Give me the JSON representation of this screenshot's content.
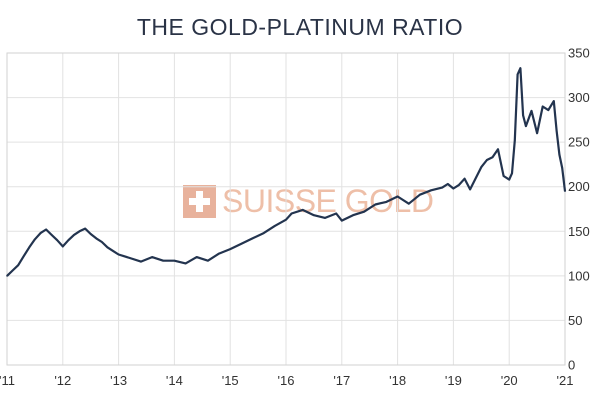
{
  "chart_data": {
    "type": "line",
    "title": "THE GOLD-PLATINUM RATIO",
    "watermark": "SUISSE GOLD",
    "xlabel": "",
    "ylabel": "",
    "x_ticks": [
      "'11",
      "'12",
      "'13",
      "'14",
      "'15",
      "'16",
      "'17",
      "'18",
      "'19",
      "'20",
      "'21"
    ],
    "y_ticks": [
      0,
      50,
      100,
      150,
      200,
      250,
      300,
      350
    ],
    "ylim": [
      0,
      350
    ],
    "xlim": [
      2011.0,
      2021.0
    ],
    "grid": true,
    "y_axis_side": "right",
    "series_color": "#23344f",
    "series": [
      {
        "x": [
          2011.0,
          2011.1,
          2011.2,
          2011.3,
          2011.4,
          2011.5,
          2011.6,
          2011.7,
          2011.8,
          2011.9,
          2012.0,
          2012.1,
          2012.2,
          2012.3,
          2012.4,
          2012.5,
          2012.6,
          2012.7,
          2012.8,
          2012.9,
          2013.0,
          2013.2,
          2013.4,
          2013.6,
          2013.8,
          2014.0,
          2014.2,
          2014.4,
          2014.6,
          2014.8,
          2015.0,
          2015.2,
          2015.4,
          2015.6,
          2015.8,
          2016.0,
          2016.1,
          2016.3,
          2016.5,
          2016.7,
          2016.9,
          2017.0,
          2017.2,
          2017.4,
          2017.6,
          2017.8,
          2018.0,
          2018.2,
          2018.4,
          2018.6,
          2018.8,
          2018.9,
          2019.0,
          2019.1,
          2019.2,
          2019.3,
          2019.5,
          2019.6,
          2019.7,
          2019.8,
          2019.9,
          2020.0,
          2020.05,
          2020.1,
          2020.15,
          2020.2,
          2020.25,
          2020.3,
          2020.4,
          2020.5,
          2020.6,
          2020.7,
          2020.8,
          2020.85,
          2020.9,
          2020.95,
          2021.0
        ],
        "values": [
          100,
          106,
          112,
          122,
          132,
          141,
          148,
          152,
          146,
          140,
          133,
          140,
          146,
          150,
          153,
          147,
          142,
          138,
          132,
          128,
          124,
          120,
          116,
          121,
          117,
          117,
          114,
          121,
          117,
          125,
          130,
          136,
          142,
          148,
          156,
          163,
          170,
          174,
          168,
          165,
          170,
          162,
          168,
          172,
          180,
          183,
          189,
          181,
          191,
          196,
          199,
          203,
          198,
          202,
          209,
          197,
          222,
          230,
          233,
          242,
          212,
          208,
          215,
          252,
          326,
          333,
          280,
          268,
          285,
          260,
          290,
          286,
          296,
          263,
          236,
          221,
          195
        ]
      }
    ]
  }
}
